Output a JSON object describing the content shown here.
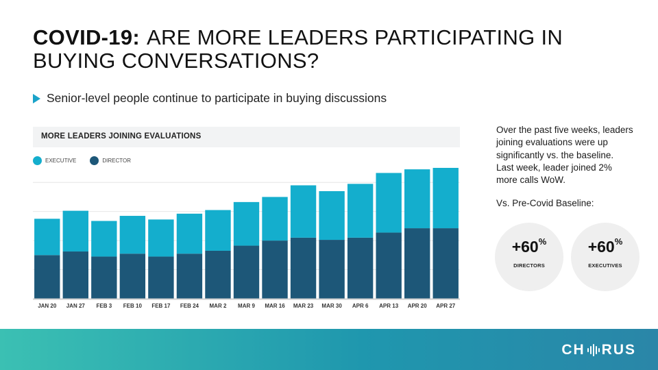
{
  "title": {
    "bold": "COVID-19:",
    "rest": "ARE MORE LEADERS PARTICIPATING IN BUYING CONVERSATIONS?"
  },
  "bullet": "Senior-level people continue to participate in buying discussions",
  "side": {
    "paragraph": "Over the past five weeks, leaders joining evaluations were up significantly vs. the baseline. Last week, leader joined 2% more calls WoW.",
    "baseline_label": "Vs. Pre-Covid Baseline:",
    "stats": [
      {
        "value": "+60",
        "unit": "%",
        "label": "DIRECTORS"
      },
      {
        "value": "+60",
        "unit": "%",
        "label": "EXECUTIVES"
      }
    ]
  },
  "logo": {
    "left": "CH",
    "right": "RUS"
  },
  "colors": {
    "executive": "#14aecd",
    "director": "#1d5778",
    "accent": "#1aa3c9"
  },
  "chart_data": {
    "type": "bar",
    "stacked": true,
    "title": "MORE LEADERS JOINING EVALUATIONS",
    "legend": [
      "EXECUTIVE",
      "DIRECTOR"
    ],
    "categories": [
      "JAN 20",
      "JAN 27",
      "FEB 3",
      "FEB 10",
      "FEB 17",
      "FEB 24",
      "MAR 2",
      "MAR 9",
      "MAR 16",
      "MAR 23",
      "MAR 30",
      "APR 6",
      "APR 13",
      "APR 20",
      "APR 27"
    ],
    "series": [
      {
        "name": "DIRECTOR",
        "color": "#1d5778",
        "values": [
          60,
          65,
          58,
          62,
          58,
          62,
          66,
          73,
          80,
          84,
          81,
          84,
          91,
          97,
          97
        ]
      },
      {
        "name": "EXECUTIVE",
        "color": "#14aecd",
        "values": [
          50,
          56,
          49,
          52,
          51,
          55,
          56,
          60,
          60,
          72,
          67,
          74,
          82,
          81,
          83
        ]
      }
    ],
    "ylim": [
      0,
      180
    ],
    "grid": true,
    "legend_position": "top-left"
  }
}
